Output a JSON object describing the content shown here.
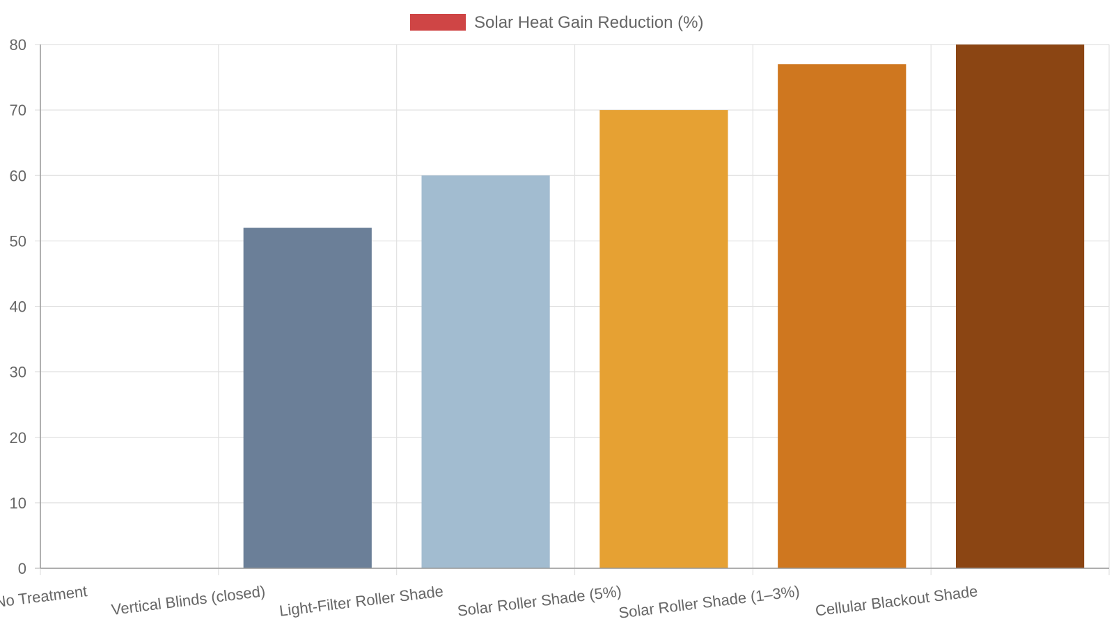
{
  "chart_data": {
    "type": "bar",
    "categories": [
      "No Treatment",
      "Vertical Blinds (closed)",
      "Light-Filter Roller Shade",
      "Solar Roller Shade (5%)",
      "Solar Roller Shade (1–3%)",
      "Cellular Blackout Shade"
    ],
    "series": [
      {
        "name": "Solar Heat Gain Reduction (%)",
        "values": [
          0,
          52,
          60,
          70,
          77,
          80
        ]
      }
    ],
    "bar_colors": [
      "#cccccc",
      "#6b7f98",
      "#a2bcd0",
      "#e6a133",
      "#cf771f",
      "#8b4513"
    ],
    "legend": {
      "label": "Solar Heat Gain Reduction (%)",
      "swatch_color": "#cf4545",
      "position": "top-center"
    },
    "ylim": [
      0,
      80
    ],
    "yticks": [
      "0",
      "10",
      "20",
      "30",
      "40",
      "50",
      "60",
      "70",
      "80"
    ],
    "grid": true,
    "title": "",
    "xlabel": "",
    "ylabel": ""
  }
}
